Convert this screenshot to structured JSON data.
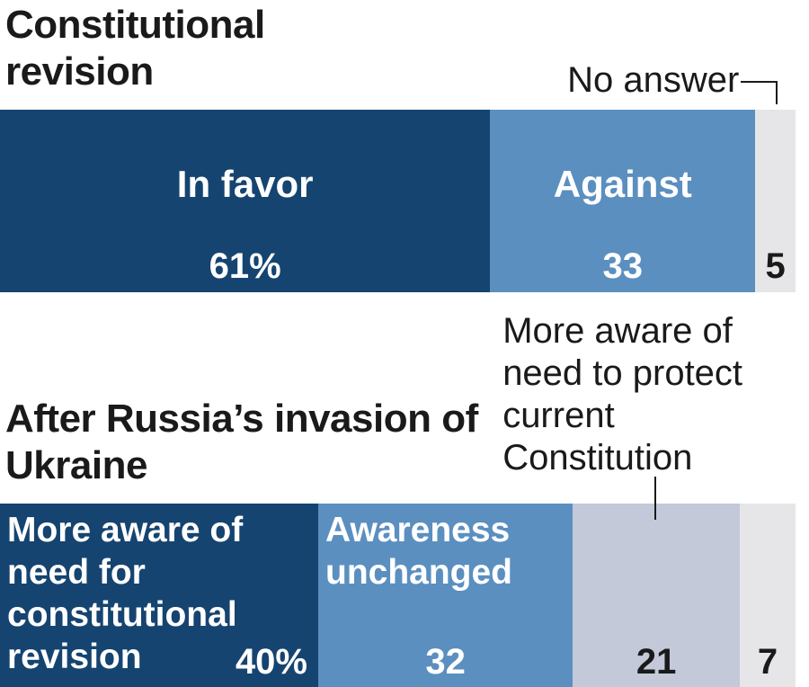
{
  "chart_data": [
    {
      "type": "stacked_bar",
      "title": "Constitutional revision",
      "series": [
        {
          "name": "In favor",
          "color": "#154470",
          "values": [
            61
          ],
          "value_labels": [
            "61%"
          ]
        },
        {
          "name": "Against",
          "color": "#5b8fc0",
          "values": [
            33
          ]
        },
        {
          "name": "No answer",
          "color": "#e6e6e8",
          "values": [
            5
          ]
        }
      ]
    },
    {
      "type": "stacked_bar",
      "title": "After Russia’s invasion of Ukraine",
      "series": [
        {
          "name": "More aware of need for constitutional revision",
          "color": "#154470",
          "values": [
            40
          ],
          "value_labels": [
            "40%"
          ]
        },
        {
          "name": "Awareness unchanged",
          "color": "#5b8fc0",
          "values": [
            32
          ]
        },
        {
          "name": "More aware of need to protect current Constitution",
          "color": "#c3c9d9",
          "values": [
            21
          ]
        },
        {
          "color": "#e6e6e8",
          "values": [
            7
          ]
        }
      ]
    }
  ]
}
